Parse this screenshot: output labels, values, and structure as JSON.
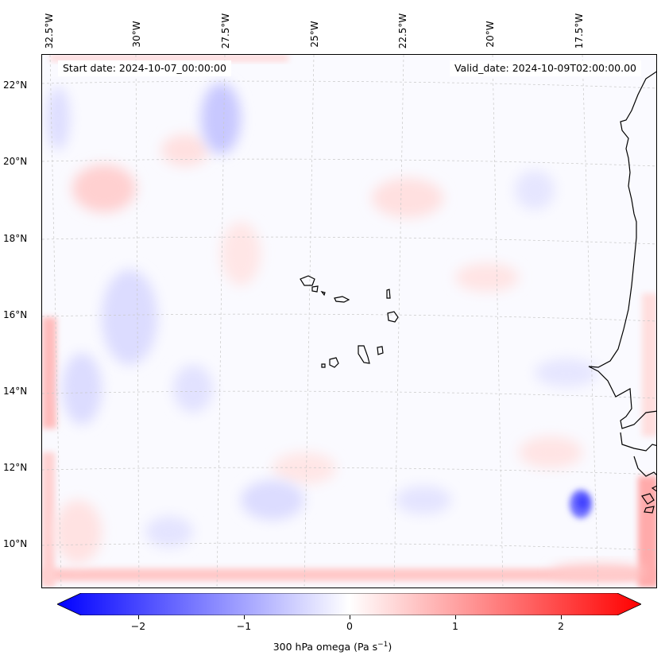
{
  "map": {
    "start_date": "Start date: 2024-10-07_00:00:00",
    "valid_date": "Valid_date: 2024-10-09T02:00:00.00",
    "lon_labels": [
      "32.5°W",
      "30°W",
      "27.5°W",
      "25°W",
      "22.5°W",
      "20°W",
      "17.5°W"
    ],
    "lat_labels": [
      "22°N",
      "20°N",
      "18°N",
      "16°N",
      "14°N",
      "12°N",
      "10°N"
    ],
    "field": "300 hPa omega",
    "units": "Pa s",
    "units_exponent": "−1"
  },
  "colorbar": {
    "min": -2.7,
    "max": 2.7,
    "ticks": [
      -2,
      -1,
      0,
      1,
      2
    ],
    "tick_labels": [
      "−2",
      "−1",
      "0",
      "1",
      "2"
    ],
    "label": "300 hPa omega (Pa s",
    "label_suffix": ")",
    "colormap": "bwr",
    "colors": {
      "negative": "#0000ff",
      "zero": "#ffffff",
      "positive": "#ff0000"
    }
  },
  "colors": {
    "coastline": "#000000",
    "gridline": "#c8c8c8"
  }
}
